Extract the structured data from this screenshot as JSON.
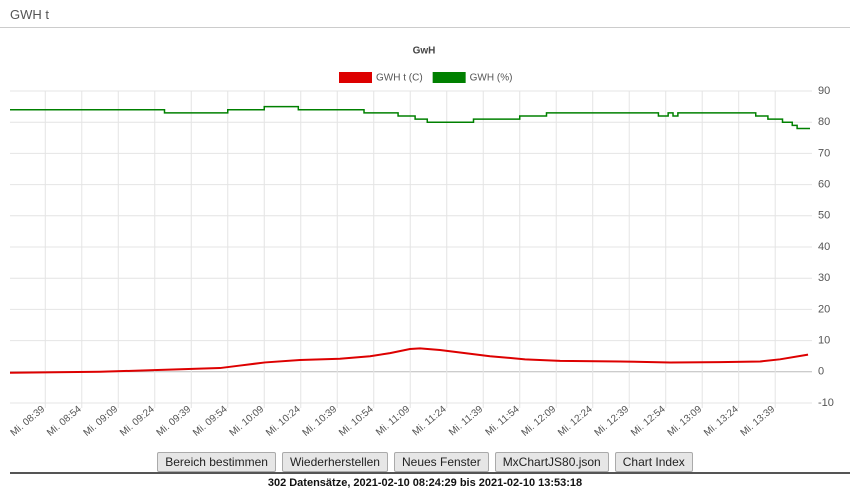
{
  "header": {
    "title": "GWH t"
  },
  "chart_data": {
    "type": "line",
    "title": "GwH",
    "xlim": [
      504.5,
      833.3
    ],
    "xticks": [
      {
        "value": 519,
        "label": "Mi. 08:39"
      },
      {
        "value": 534,
        "label": "Mi. 08:54"
      },
      {
        "value": 549,
        "label": "Mi. 09:09"
      },
      {
        "value": 564,
        "label": "Mi. 09:24"
      },
      {
        "value": 579,
        "label": "Mi. 09:39"
      },
      {
        "value": 594,
        "label": "Mi. 09:54"
      },
      {
        "value": 609,
        "label": "Mi. 10:09"
      },
      {
        "value": 624,
        "label": "Mi. 10:24"
      },
      {
        "value": 639,
        "label": "Mi. 10:39"
      },
      {
        "value": 654,
        "label": "Mi. 10:54"
      },
      {
        "value": 669,
        "label": "Mi. 11:09"
      },
      {
        "value": 684,
        "label": "Mi. 11:24"
      },
      {
        "value": 699,
        "label": "Mi. 11:39"
      },
      {
        "value": 714,
        "label": "Mi. 11:54"
      },
      {
        "value": 729,
        "label": "Mi. 12:09"
      },
      {
        "value": 744,
        "label": "Mi. 12:24"
      },
      {
        "value": 759,
        "label": "Mi. 12:39"
      },
      {
        "value": 774,
        "label": "Mi. 12:54"
      },
      {
        "value": 789,
        "label": "Mi. 13:09"
      },
      {
        "value": 804,
        "label": "Mi. 13:24"
      },
      {
        "value": 819,
        "label": "Mi. 13:39"
      }
    ],
    "ylim": [
      -10,
      90
    ],
    "yticks": [
      -10,
      0,
      10,
      20,
      30,
      40,
      50,
      60,
      70,
      80,
      90
    ],
    "grid": true,
    "series": [
      {
        "name": "GWH t (C)",
        "color": "#dd0000",
        "step": false,
        "x": [
          504.5,
          541.5,
          562,
          582.6,
          590.8,
          599,
          609.3,
          623.7,
          640.1,
          652.5,
          660.7,
          668.9,
          673,
          681.2,
          691.5,
          701.8,
          716.2,
          730.6,
          755.2,
          775.8,
          796.3,
          812.8,
          821,
          832.5
        ],
        "values": [
          -0.3,
          0,
          0.5,
          1,
          1.2,
          2,
          3,
          3.8,
          4.2,
          5,
          6,
          7.3,
          7.5,
          7,
          6,
          5,
          4,
          3.5,
          3.3,
          3,
          3.1,
          3.3,
          4,
          5.5
        ]
      },
      {
        "name": "GWH (%)",
        "color": "#008000",
        "step": true,
        "x": [
          504.5,
          568,
          594,
          609,
          623,
          650,
          664,
          671,
          676,
          695,
          714,
          725,
          771,
          775,
          777,
          779,
          811,
          816,
          822,
          826,
          828
        ],
        "values": [
          84,
          83,
          84,
          85,
          84,
          83,
          82,
          81,
          80,
          81,
          82,
          83,
          82,
          83,
          82,
          83,
          82,
          81,
          80,
          79,
          78
        ]
      }
    ]
  },
  "buttons": [
    "Bereich bestimmen",
    "Wiederherstellen",
    "Neues Fenster",
    "MxChartJS80.json",
    "Chart Index"
  ],
  "footer": "302 Datensätze, 2021-02-10 08:24:29 bis 2021-02-10 13:53:18"
}
